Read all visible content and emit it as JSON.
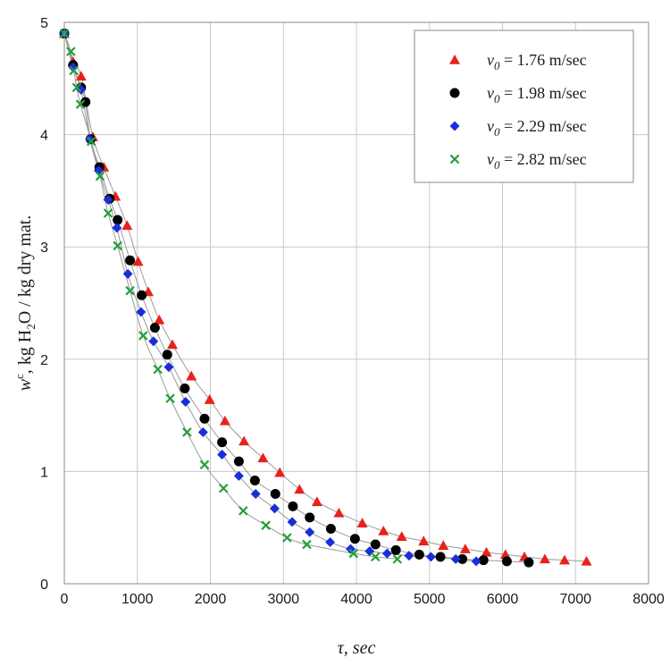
{
  "chart_data": {
    "type": "scatter",
    "xlabel": "τ, sec",
    "ylabel_parts": {
      "symbol": "w",
      "sup": "c",
      "mid": ", kg H",
      "sub": "2",
      "tail": "O / kg dry mat."
    },
    "xlim": [
      0,
      8000
    ],
    "ylim": [
      0,
      5
    ],
    "xticks": [
      0,
      1000,
      2000,
      3000,
      4000,
      5000,
      6000,
      7000,
      8000
    ],
    "yticks": [
      0,
      1,
      2,
      3,
      4,
      5
    ],
    "grid": true,
    "legend_position": "top-right",
    "series": [
      {
        "name_parts": {
          "sym": "v",
          "sub": "0",
          "rest": " = 1.76 m/sec"
        },
        "marker": "triangle",
        "color": "#e8221b",
        "points": [
          [
            0,
            4.9
          ],
          [
            120,
            4.65
          ],
          [
            230,
            4.52
          ],
          [
            390,
            3.98
          ],
          [
            540,
            3.71
          ],
          [
            700,
            3.45
          ],
          [
            860,
            3.19
          ],
          [
            1010,
            2.87
          ],
          [
            1150,
            2.6
          ],
          [
            1300,
            2.35
          ],
          [
            1480,
            2.13
          ],
          [
            1740,
            1.85
          ],
          [
            1990,
            1.64
          ],
          [
            2200,
            1.45
          ],
          [
            2460,
            1.27
          ],
          [
            2720,
            1.12
          ],
          [
            2950,
            0.99
          ],
          [
            3220,
            0.84
          ],
          [
            3460,
            0.73
          ],
          [
            3760,
            0.63
          ],
          [
            4080,
            0.54
          ],
          [
            4370,
            0.47
          ],
          [
            4620,
            0.42
          ],
          [
            4920,
            0.38
          ],
          [
            5190,
            0.34
          ],
          [
            5490,
            0.31
          ],
          [
            5780,
            0.28
          ],
          [
            6040,
            0.26
          ],
          [
            6300,
            0.24
          ],
          [
            6580,
            0.22
          ],
          [
            6850,
            0.21
          ],
          [
            7150,
            0.2
          ]
        ]
      },
      {
        "name_parts": {
          "sym": "v",
          "sub": "0",
          "rest": " = 1.98 m/sec"
        },
        "marker": "circle",
        "color": "#000000",
        "points": [
          [
            0,
            4.9
          ],
          [
            120,
            4.62
          ],
          [
            230,
            4.42
          ],
          [
            290,
            4.29
          ],
          [
            360,
            3.96
          ],
          [
            480,
            3.71
          ],
          [
            620,
            3.43
          ],
          [
            730,
            3.24
          ],
          [
            900,
            2.88
          ],
          [
            1060,
            2.57
          ],
          [
            1240,
            2.28
          ],
          [
            1410,
            2.04
          ],
          [
            1650,
            1.74
          ],
          [
            1920,
            1.47
          ],
          [
            2160,
            1.26
          ],
          [
            2390,
            1.09
          ],
          [
            2610,
            0.92
          ],
          [
            2890,
            0.8
          ],
          [
            3130,
            0.69
          ],
          [
            3360,
            0.59
          ],
          [
            3650,
            0.49
          ],
          [
            3980,
            0.4
          ],
          [
            4260,
            0.35
          ],
          [
            4540,
            0.3
          ],
          [
            4860,
            0.26
          ],
          [
            5150,
            0.24
          ],
          [
            5450,
            0.22
          ],
          [
            5740,
            0.21
          ],
          [
            6060,
            0.2
          ],
          [
            6360,
            0.19
          ]
        ]
      },
      {
        "name_parts": {
          "sym": "v",
          "sub": "0",
          "rest": " = 2.29 m/sec"
        },
        "marker": "diamond",
        "color": "#1a2ed8",
        "points": [
          [
            0,
            4.9
          ],
          [
            120,
            4.6
          ],
          [
            230,
            4.4
          ],
          [
            350,
            3.96
          ],
          [
            470,
            3.68
          ],
          [
            600,
            3.42
          ],
          [
            720,
            3.17
          ],
          [
            870,
            2.76
          ],
          [
            1050,
            2.42
          ],
          [
            1220,
            2.16
          ],
          [
            1430,
            1.93
          ],
          [
            1660,
            1.62
          ],
          [
            1900,
            1.35
          ],
          [
            2160,
            1.15
          ],
          [
            2390,
            0.96
          ],
          [
            2620,
            0.8
          ],
          [
            2880,
            0.67
          ],
          [
            3120,
            0.55
          ],
          [
            3360,
            0.46
          ],
          [
            3640,
            0.37
          ],
          [
            3920,
            0.31
          ],
          [
            4180,
            0.29
          ],
          [
            4420,
            0.27
          ],
          [
            4720,
            0.25
          ],
          [
            5020,
            0.24
          ],
          [
            5360,
            0.22
          ],
          [
            5640,
            0.2
          ]
        ]
      },
      {
        "name_parts": {
          "sym": "v",
          "sub": "0",
          "rest": " = 2.82 m/sec"
        },
        "marker": "cross",
        "color": "#22a03a",
        "points": [
          [
            0,
            4.9
          ],
          [
            90,
            4.74
          ],
          [
            130,
            4.57
          ],
          [
            170,
            4.42
          ],
          [
            220,
            4.27
          ],
          [
            370,
            3.94
          ],
          [
            490,
            3.63
          ],
          [
            600,
            3.3
          ],
          [
            730,
            3.01
          ],
          [
            900,
            2.61
          ],
          [
            1080,
            2.21
          ],
          [
            1280,
            1.91
          ],
          [
            1450,
            1.65
          ],
          [
            1680,
            1.35
          ],
          [
            1920,
            1.06
          ],
          [
            2180,
            0.85
          ],
          [
            2450,
            0.65
          ],
          [
            2760,
            0.52
          ],
          [
            3050,
            0.41
          ],
          [
            3320,
            0.35
          ],
          [
            3960,
            0.27
          ],
          [
            4260,
            0.24
          ],
          [
            4560,
            0.22
          ]
        ]
      }
    ]
  }
}
